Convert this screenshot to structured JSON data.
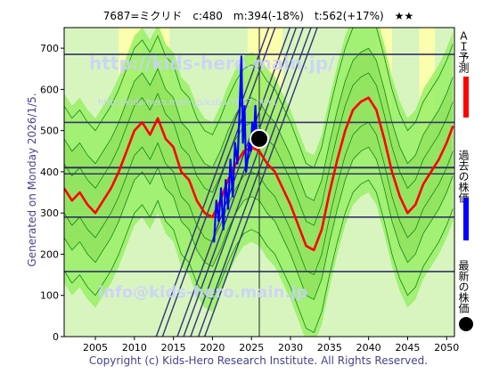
{
  "header": {
    "stock_line": "7687=ミクリド　c:480　m:394(-18%)　t:562(+17%)　★★"
  },
  "side_left": "Generated on Monday 2026/1/5.",
  "legend": {
    "ai_label": "ＡＩ予測",
    "past_label": "過去の株価",
    "latest_label": "最新の株価"
  },
  "watermarks": {
    "top": "http://kids-hero.main.jp/",
    "top_small": "http://kids-hero.main.jp/kabu/7687.html",
    "bottom": "info@kids-hero.main.jp"
  },
  "footer": "Copyright (c) Kids-Hero Research Institute. All Rights Reserved.",
  "colors": {
    "ai": "#ff0000",
    "past": "#0000ff",
    "green": "#99ee66",
    "yellow": "#ffffaa",
    "hline": "#333366",
    "trend": "#333377"
  },
  "chart_data": {
    "type": "line",
    "x_ticks": [
      2005,
      2010,
      2015,
      2020,
      2025,
      2030,
      2035,
      2040,
      2045,
      2050
    ],
    "y_ticks": [
      0,
      100,
      200,
      300,
      400,
      500,
      600,
      700
    ],
    "xlim": [
      2001,
      2051
    ],
    "ylim": [
      0,
      750
    ],
    "latest": {
      "x": 2026.0,
      "y": 480
    },
    "hlines": [
      158,
      290,
      395,
      410,
      520,
      685
    ],
    "series": [
      {
        "name": "ＡＩ予測",
        "x": [
          2001,
          2002,
          2003,
          2004,
          2005,
          2006,
          2007,
          2008,
          2009,
          2010,
          2011,
          2012,
          2013,
          2014,
          2015,
          2016,
          2017,
          2018,
          2019,
          2020,
          2021,
          2022,
          2023,
          2024,
          2025,
          2026,
          2027,
          2028,
          2029,
          2030,
          2031,
          2032,
          2033,
          2034,
          2035,
          2036,
          2037,
          2038,
          2039,
          2040,
          2041,
          2042,
          2043,
          2044,
          2045,
          2046,
          2047,
          2048,
          2049,
          2050,
          2050.8
        ],
        "y": [
          360,
          330,
          350,
          320,
          300,
          330,
          360,
          400,
          450,
          500,
          520,
          490,
          530,
          480,
          460,
          400,
          380,
          330,
          300,
          290,
          330,
          380,
          420,
          450,
          460,
          450,
          420,
          400,
          360,
          320,
          270,
          220,
          210,
          260,
          350,
          430,
          500,
          550,
          570,
          580,
          550,
          480,
          400,
          340,
          300,
          320,
          370,
          400,
          430,
          470,
          510
        ]
      },
      {
        "name": "過去の株価",
        "x": [
          2020.2,
          2020.5,
          2020.8,
          2021.1,
          2021.4,
          2021.7,
          2022.0,
          2022.3,
          2022.6,
          2022.9,
          2023.2,
          2023.5,
          2023.7,
          2023.9,
          2024.1,
          2024.3,
          2024.5,
          2024.7,
          2024.9,
          2025.1,
          2025.3,
          2025.5,
          2025.7,
          2026.0
        ],
        "y": [
          230,
          330,
          280,
          360,
          260,
          380,
          310,
          430,
          340,
          470,
          420,
          560,
          680,
          470,
          560,
          400,
          430,
          470,
          450,
          520,
          480,
          560,
          470,
          480
        ]
      }
    ]
  }
}
